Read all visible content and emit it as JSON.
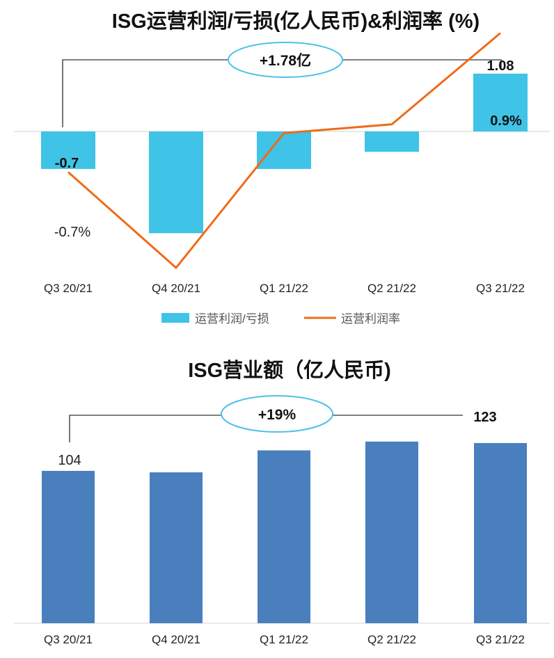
{
  "chart_data": [
    {
      "type": "bar",
      "title": "ISG运营利润/亏损(亿人民币)&利润率 (%)",
      "categories": [
        "Q3 20/21",
        "Q4 20/21",
        "Q1 21/22",
        "Q2 21/22",
        "Q3 21/22"
      ],
      "series": [
        {
          "name": "运营利润/亏损",
          "kind": "bar",
          "color": "#3fc3e6",
          "values": [
            -0.7,
            -1.9,
            -0.7,
            -0.38,
            1.08
          ],
          "labels": [
            "-0.7",
            "",
            "",
            "",
            "1.08"
          ]
        },
        {
          "name": "运营利润率",
          "kind": "line",
          "color": "#ef6b18",
          "values": [
            -0.7,
            -1.8,
            -0.25,
            -0.15,
            0.9
          ],
          "labels": [
            "-0.7%",
            "",
            "",
            "",
            "0.9%"
          ]
        }
      ],
      "callout": "+1.78亿",
      "xlabel": "",
      "ylabel": ""
    },
    {
      "type": "bar",
      "title": "ISG营业额（亿人民币)",
      "categories": [
        "Q3 20/21",
        "Q4 20/21",
        "Q1 21/22",
        "Q2 21/22",
        "Q3 21/22"
      ],
      "series": [
        {
          "name": "营业额",
          "color": "#4a7fbd",
          "values": [
            104,
            103,
            118,
            124,
            123
          ],
          "labels": [
            "104",
            "",
            "",
            "",
            "123"
          ]
        }
      ],
      "callout": "+19%",
      "xlabel": "",
      "ylabel": ""
    }
  ]
}
